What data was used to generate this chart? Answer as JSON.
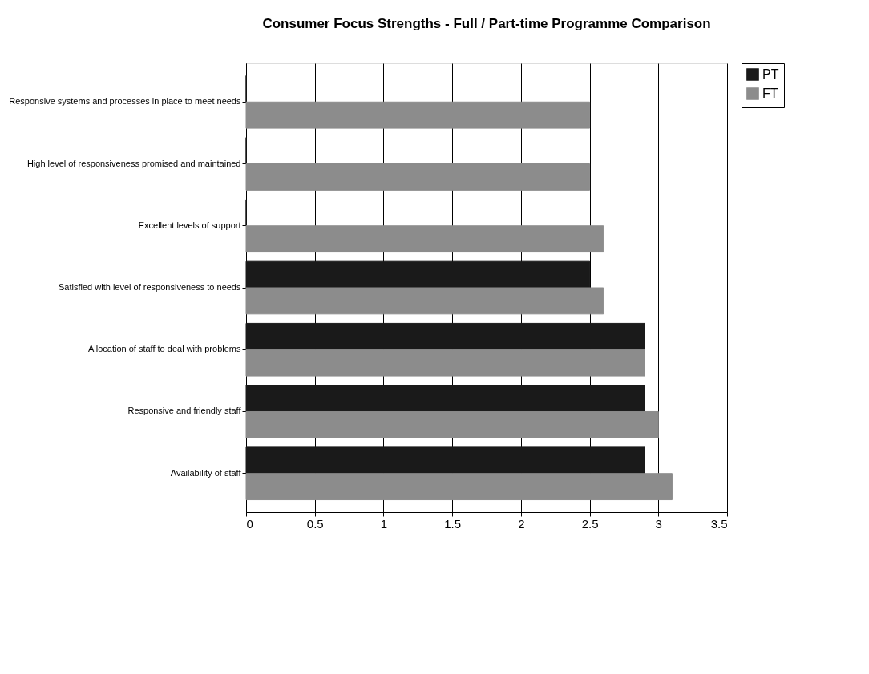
{
  "chart_data": {
    "type": "bar",
    "orientation": "horizontal",
    "title": "Consumer Focus Strengths - Full / Part-time Programme Comparison",
    "categories": [
      "Responsive systems and processes in place to meet needs",
      "High level of responsiveness promised and maintained",
      "Excellent levels of support",
      "Satisfied with level of responsiveness to needs",
      "Allocation of staff to deal with problems",
      "Responsive and friendly staff",
      "Availability of staff"
    ],
    "series": [
      {
        "name": "PT",
        "color": "#1a1a1a",
        "values": [
          0,
          0,
          0,
          2.5,
          2.9,
          2.9,
          2.9
        ]
      },
      {
        "name": "FT",
        "color": "#8c8c8c",
        "values": [
          2.5,
          2.5,
          2.6,
          2.6,
          2.9,
          3.0,
          3.1
        ]
      }
    ],
    "xlim": [
      0,
      3.5
    ],
    "xticks": [
      0,
      0.5,
      1,
      1.5,
      2,
      2.5,
      3,
      3.5
    ],
    "grid": "x",
    "legend": "right"
  }
}
